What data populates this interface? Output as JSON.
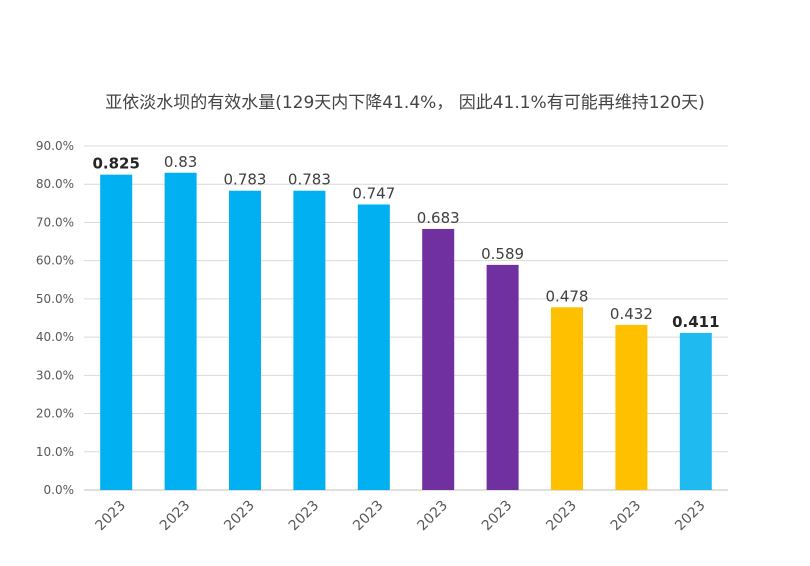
{
  "chart_data": {
    "type": "bar",
    "title": "亚依淡水坝的有效水量(129天内下降41.4%， 因此41.1%有可能再维持120天)",
    "categories": [
      "2023",
      "2023",
      "2023",
      "2023",
      "2023",
      "2023",
      "2023",
      "2023",
      "2023",
      "2023"
    ],
    "values": [
      0.825,
      0.83,
      0.783,
      0.783,
      0.747,
      0.683,
      0.589,
      0.478,
      0.432,
      0.411
    ],
    "value_labels": [
      "0.825",
      "0.83",
      "0.783",
      "0.783",
      "0.747",
      "0.683",
      "0.589",
      "0.478",
      "0.432",
      "0.411"
    ],
    "bold_labels": [
      true,
      false,
      false,
      false,
      false,
      false,
      false,
      false,
      false,
      true
    ],
    "bar_colors": [
      "#00b0f0",
      "#00b0f0",
      "#00b0f0",
      "#00b0f0",
      "#00b0f0",
      "#7030a0",
      "#7030a0",
      "#ffc000",
      "#ffc000",
      "#1fbbf0"
    ],
    "yticks": [
      "0.0%",
      "10.0%",
      "20.0%",
      "30.0%",
      "40.0%",
      "50.0%",
      "60.0%",
      "70.0%",
      "80.0%",
      "90.0%"
    ],
    "ylim": [
      0,
      0.9
    ],
    "grid": true,
    "xlabel": "",
    "ylabel": ""
  }
}
